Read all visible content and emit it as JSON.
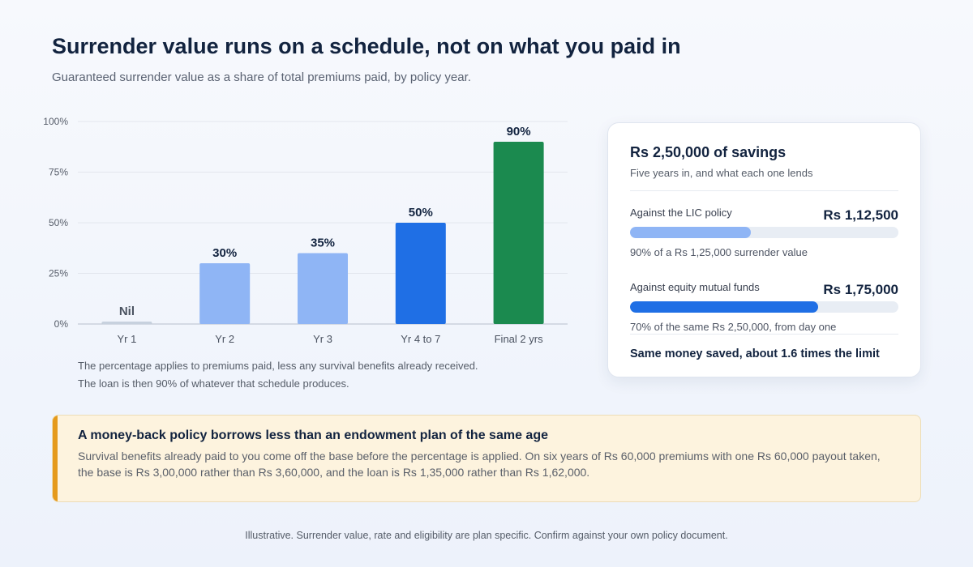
{
  "header": {
    "title": "Surrender value runs on a schedule, not on what you paid in",
    "subtitle": "Guaranteed surrender value as a share of total premiums paid, by policy year."
  },
  "chart_data": {
    "type": "bar",
    "title": "",
    "xlabel": "",
    "ylabel": "",
    "categories": [
      "Yr 1",
      "Yr 2",
      "Yr 3",
      "Yr 4 to 7",
      "Final 2 yrs"
    ],
    "values": [
      0,
      30,
      35,
      50,
      90
    ],
    "data_labels": [
      "Nil",
      "30%",
      "35%",
      "50%",
      "90%"
    ],
    "bar_colors": [
      "#c7d1de",
      "#8fb5f5",
      "#8fb5f5",
      "#1f6fe5",
      "#1b8a4f"
    ],
    "ylim": [
      0,
      100
    ],
    "yticks": [
      0,
      25,
      50,
      75,
      100
    ],
    "ytick_labels": [
      "0%",
      "25%",
      "50%",
      "75%",
      "100%"
    ],
    "grid": true
  },
  "chart_notes": {
    "line1": "The percentage applies to premiums paid, less any survival benefits already received.",
    "line2": "The loan is then 90% of whatever that schedule produces."
  },
  "card": {
    "title": "Rs 2,50,000 of savings",
    "subtitle": "Five years in, and what each one lends",
    "rows": [
      {
        "label": "Against the LIC policy",
        "amount": "Rs 1,12,500",
        "bar_fraction": 0.45,
        "bar_color": "#8fb5f5",
        "note": "90% of a Rs 1,25,000 surrender value"
      },
      {
        "label": "Against equity mutual funds",
        "amount": "Rs 1,75,000",
        "bar_fraction": 0.7,
        "bar_color": "#1f6fe5",
        "note": "70% of the same Rs 2,50,000, from day one"
      }
    ],
    "summary": "Same money saved, about 1.6 times the limit"
  },
  "callout": {
    "title": "A money-back policy borrows less than an endowment plan of the same age",
    "body": "Survival benefits already paid to you come off the base before the percentage is applied. On six years of Rs 60,000 premiums with one Rs 60,000 payout taken, the base is Rs 3,00,000 rather than Rs 3,60,000, and the loan is Rs 1,35,000 rather than Rs 1,62,000.",
    "accent": "#e59a1c"
  },
  "footer": {
    "text": "Illustrative. Surrender value, rate and eligibility are plan specific. Confirm against your own policy document."
  }
}
